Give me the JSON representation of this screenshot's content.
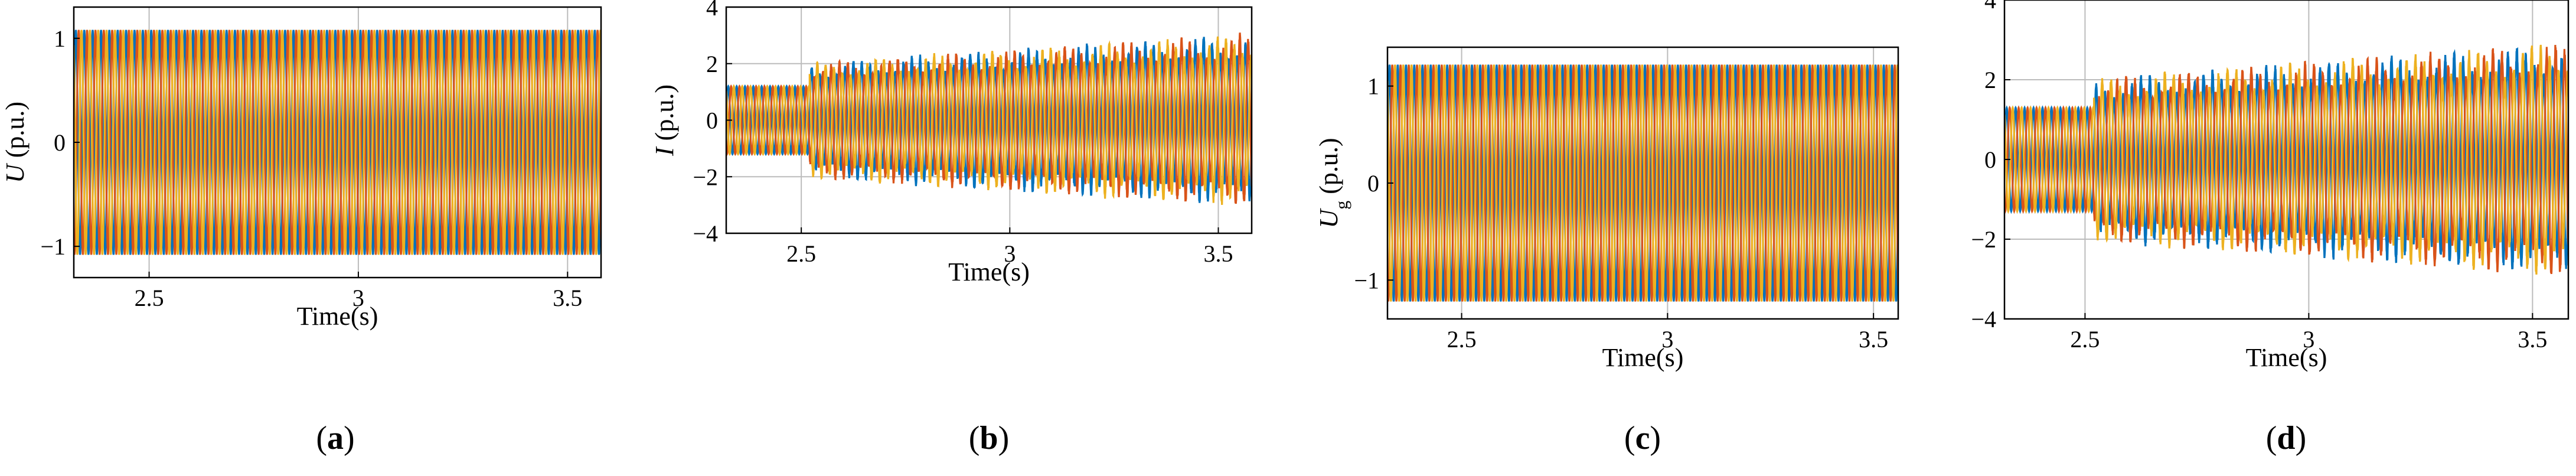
{
  "colors": {
    "phase_a": "#0072BD",
    "phase_b": "#D95319",
    "phase_c": "#EDB120",
    "grid": "#bcbcbc",
    "axis": "#000000"
  },
  "chart_data": [
    {
      "type": "line",
      "panel": "a",
      "caption_open": "(",
      "caption_letter": "a",
      "caption_close": ")",
      "xlabel": "Time(s)",
      "ylabel": "U",
      "ylabel_sub": "",
      "ylabel_unit": " (p.u.)",
      "xlim": [
        2.32,
        3.58
      ],
      "ylim": [
        -1.3,
        1.3
      ],
      "xticks": [
        2.5,
        3,
        3.5
      ],
      "xtick_labels": [
        "2.5",
        "3",
        "3.5"
      ],
      "yticks": [
        -1,
        0,
        1
      ],
      "ytick_labels": [
        "−1",
        "0",
        "1"
      ],
      "grid": true,
      "series": [
        {
          "color_key": "phase_a",
          "phase_deg": 0
        },
        {
          "color_key": "phase_b",
          "phase_deg": -120
        },
        {
          "color_key": "phase_c",
          "phase_deg": 120
        }
      ],
      "frequency_hz": 50,
      "segments": [
        {
          "t_start": 2.32,
          "t_end": 3.58,
          "amp_start": 1.08,
          "amp_end": 1.08,
          "oscillation": 0
        }
      ]
    },
    {
      "type": "line",
      "panel": "b",
      "caption_open": "(",
      "caption_letter": "b",
      "caption_close": ")",
      "xlabel": "Time(s)",
      "ylabel": "I",
      "ylabel_sub": "",
      "ylabel_unit": " (p.u.)",
      "xlim": [
        2.32,
        3.58
      ],
      "ylim": [
        -4,
        4
      ],
      "xticks": [
        2.5,
        3,
        3.5
      ],
      "xtick_labels": [
        "2.5",
        "3",
        "3.5"
      ],
      "yticks": [
        -4,
        -2,
        0,
        2,
        4
      ],
      "ytick_labels": [
        "−4",
        "−2",
        "0",
        "2",
        "4"
      ],
      "grid": true,
      "series": [
        {
          "color_key": "phase_a",
          "phase_deg": 0
        },
        {
          "color_key": "phase_b",
          "phase_deg": -120
        },
        {
          "color_key": "phase_c",
          "phase_deg": 120
        }
      ],
      "frequency_hz": 50,
      "segments": [
        {
          "t_start": 2.32,
          "t_end": 2.52,
          "amp_start": 1.2,
          "amp_end": 1.2,
          "oscillation": 0
        },
        {
          "t_start": 2.52,
          "t_end": 3.58,
          "amp_start": 1.75,
          "amp_end": 2.6,
          "oscillation": 0.3
        }
      ]
    },
    {
      "type": "line",
      "panel": "c",
      "caption_open": "(",
      "caption_letter": "c",
      "caption_close": ")",
      "xlabel": "Time(s)",
      "ylabel": "U",
      "ylabel_sub": "g",
      "ylabel_unit": " (p.u.)",
      "xlim": [
        2.32,
        3.56
      ],
      "ylim": [
        -1.4,
        1.4
      ],
      "xticks": [
        2.5,
        3,
        3.5
      ],
      "xtick_labels": [
        "2.5",
        "3",
        "3.5"
      ],
      "yticks": [
        -1,
        0,
        1
      ],
      "ytick_labels": [
        "−1",
        "0",
        "1"
      ],
      "grid": true,
      "series": [
        {
          "color_key": "phase_a",
          "phase_deg": 0
        },
        {
          "color_key": "phase_b",
          "phase_deg": -120
        },
        {
          "color_key": "phase_c",
          "phase_deg": 120
        }
      ],
      "frequency_hz": 50,
      "segments": [
        {
          "t_start": 2.32,
          "t_end": 3.56,
          "amp_start": 1.22,
          "amp_end": 1.22,
          "oscillation": 0
        }
      ]
    },
    {
      "type": "line",
      "panel": "d",
      "caption_open": "(",
      "caption_letter": "d",
      "caption_close": ")",
      "xlabel": "Time(s)",
      "ylabel": "",
      "ylabel_sub": "",
      "ylabel_unit": "",
      "xlim": [
        2.32,
        3.58
      ],
      "ylim": [
        -4,
        4
      ],
      "xticks": [
        2.5,
        3,
        3.5
      ],
      "xtick_labels": [
        "2.5",
        "3",
        "3.5"
      ],
      "yticks": [
        -4,
        -2,
        0,
        2,
        4
      ],
      "ytick_labels": [
        "−4",
        "−2",
        "0",
        "2",
        "4"
      ],
      "grid": true,
      "series": [
        {
          "color_key": "phase_a",
          "phase_deg": 0
        },
        {
          "color_key": "phase_b",
          "phase_deg": -120
        },
        {
          "color_key": "phase_c",
          "phase_deg": 120
        }
      ],
      "frequency_hz": 50,
      "segments": [
        {
          "t_start": 2.32,
          "t_end": 2.52,
          "amp_start": 1.3,
          "amp_end": 1.3,
          "oscillation": 0
        },
        {
          "t_start": 2.52,
          "t_end": 3.58,
          "amp_start": 1.75,
          "amp_end": 2.5,
          "oscillation": 0.3
        }
      ]
    }
  ]
}
